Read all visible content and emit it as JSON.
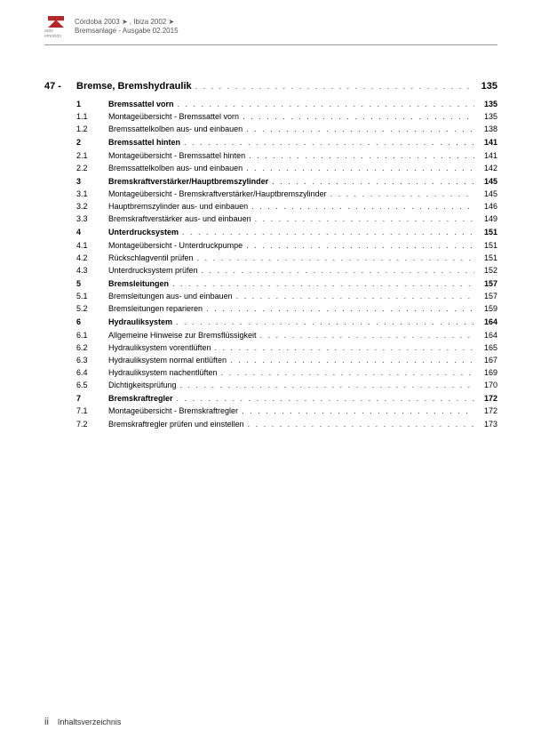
{
  "header": {
    "brand_sub": "auto emoción",
    "line1_a": "Córdoba 2003",
    "line1_b": ", Ibiza 2002",
    "line2": "Bremsanlage - Ausgabe 02.2015"
  },
  "chapter": {
    "num": "47 -",
    "title": "Bremse, Bremshydraulik",
    "page": "135"
  },
  "toc": [
    {
      "n": "1",
      "t": "Bremssattel vorn",
      "p": "135",
      "s": true
    },
    {
      "n": "1.1",
      "t": "Montageübersicht - Bremssattel vorn",
      "p": "135"
    },
    {
      "n": "1.2",
      "t": "Bremssattelkolben aus- und einbauen",
      "p": "138"
    },
    {
      "n": "2",
      "t": "Bremssattel hinten",
      "p": "141",
      "s": true
    },
    {
      "n": "2.1",
      "t": "Montageübersicht - Bremssattel hinten",
      "p": "141"
    },
    {
      "n": "2.2",
      "t": "Bremssattelkolben aus- und einbauen",
      "p": "142"
    },
    {
      "n": "3",
      "t": "Bremskraftverstärker/Hauptbremszylinder",
      "p": "145",
      "s": true
    },
    {
      "n": "3.1",
      "t": "Montageübersicht - Bremskraftverstärker/Hauptbremszylinder",
      "p": "145"
    },
    {
      "n": "3.2",
      "t": "Hauptbremszylinder aus- und einbauen",
      "p": "146"
    },
    {
      "n": "3.3",
      "t": "Bremskraftverstärker aus- und einbauen",
      "p": "149"
    },
    {
      "n": "4",
      "t": "Unterdrucksystem",
      "p": "151",
      "s": true
    },
    {
      "n": "4.1",
      "t": "Montageübersicht - Unterdruckpumpe",
      "p": "151"
    },
    {
      "n": "4.2",
      "t": "Rückschlagventil prüfen",
      "p": "151"
    },
    {
      "n": "4.3",
      "t": "Unterdrucksystem prüfen",
      "p": "152"
    },
    {
      "n": "5",
      "t": "Bremsleitungen",
      "p": "157",
      "s": true
    },
    {
      "n": "5.1",
      "t": "Bremsleitungen aus- und einbauen",
      "p": "157"
    },
    {
      "n": "5.2",
      "t": "Bremsleitungen reparieren",
      "p": "159"
    },
    {
      "n": "6",
      "t": "Hydrauliksystem",
      "p": "164",
      "s": true
    },
    {
      "n": "6.1",
      "t": "Allgemeine Hinweise zur Bremsflüssigkeit",
      "p": "164"
    },
    {
      "n": "6.2",
      "t": "Hydrauliksystem vorentlüften",
      "p": "165"
    },
    {
      "n": "6.3",
      "t": "Hydrauliksystem normal entlüften",
      "p": "167"
    },
    {
      "n": "6.4",
      "t": "Hydrauliksystem nachentlüften",
      "p": "169"
    },
    {
      "n": "6.5",
      "t": "Dichtigkeitsprüfung",
      "p": "170"
    },
    {
      "n": "7",
      "t": "Bremskraftregler",
      "p": "172",
      "s": true
    },
    {
      "n": "7.1",
      "t": "Montageübersicht - Bremskraftregler",
      "p": "172"
    },
    {
      "n": "7.2",
      "t": "Bremskraftregler prüfen und einstellen",
      "p": "173"
    }
  ],
  "footer": {
    "page": "ii",
    "label": "Inhaltsverzeichnis"
  },
  "colors": {
    "brand": "#b02a2a",
    "text": "#333333",
    "rule": "#999999"
  },
  "fonts": {
    "base": 9,
    "chapter": 11,
    "header": 8
  }
}
